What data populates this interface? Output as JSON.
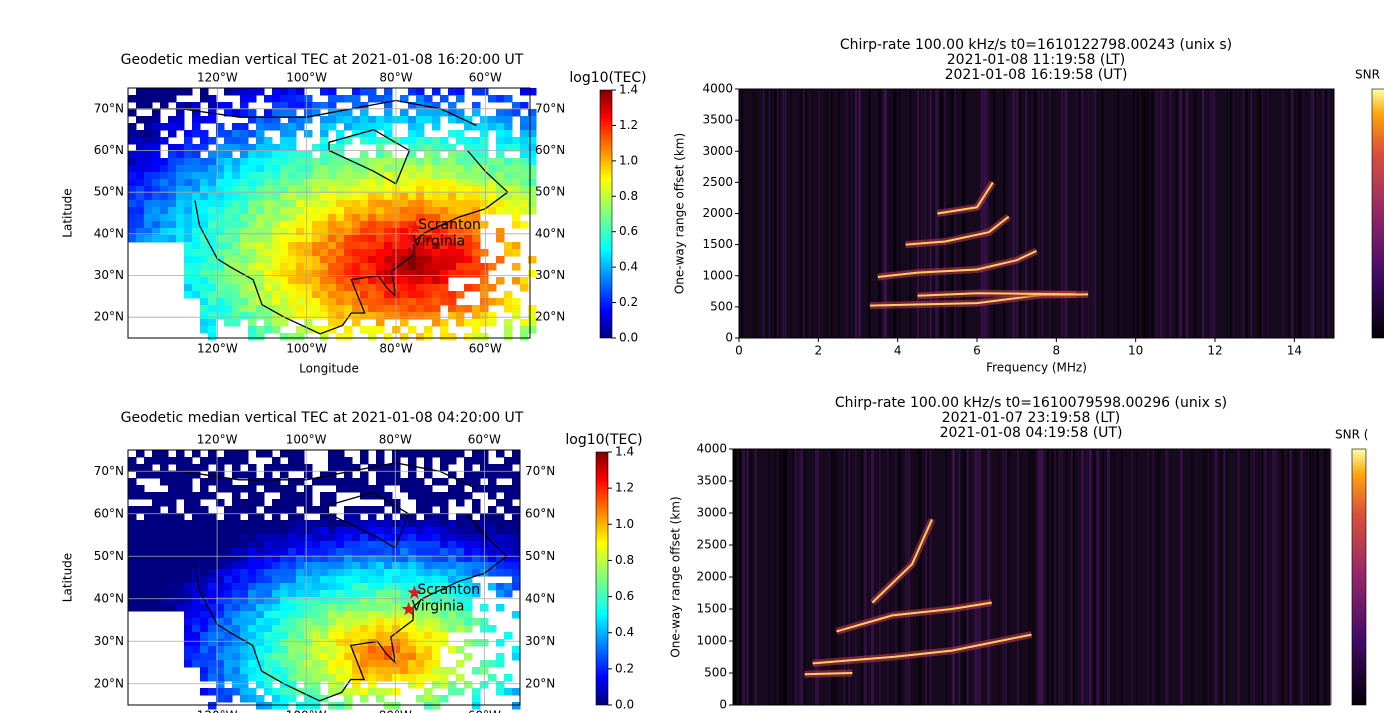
{
  "chart_data": [
    {
      "type": "map",
      "title": "Geodetic median vertical TEC at  2021-01-08 16:20:00 UT",
      "xlabel": "Longitude",
      "ylabel": "Latitude",
      "xlim": [
        -140,
        -50
      ],
      "ylim": [
        15,
        75
      ],
      "xticks": [
        {
          "value": -120,
          "label": "120°W"
        },
        {
          "value": -100,
          "label": "100°W"
        },
        {
          "value": -80,
          "label": "80°W"
        },
        {
          "value": -60,
          "label": "60°W"
        }
      ],
      "yticks": [
        {
          "value": 20,
          "label": "20°N"
        },
        {
          "value": 30,
          "label": "30°N"
        },
        {
          "value": 40,
          "label": "40°N"
        },
        {
          "value": 50,
          "label": "50°N"
        },
        {
          "value": 60,
          "label": "60°N"
        },
        {
          "value": 70,
          "label": "70°N"
        }
      ],
      "markers": [
        {
          "label": "Scranton",
          "x": -75.7,
          "y": 41.4
        },
        {
          "label": "Virginia",
          "x": -77,
          "y": 37.5
        }
      ],
      "colorbar": {
        "label": "log10(TEC)",
        "lim": [
          0,
          1.4
        ],
        "ticks": [
          {
            "value": 0,
            "label": "0.0"
          },
          0.2,
          0.4,
          0.6,
          0.8,
          {
            "value": 1,
            "label": "1.0"
          },
          1.2,
          1.4
        ]
      }
    },
    {
      "type": "spectrogram",
      "title_lines": [
        "Chirp-rate 100.00 kHz/s t0=1610122798.00243 (unix s)",
        "2021-01-08 11:19:58 (LT)",
        "2021-01-08 16:19:58 (UT)"
      ],
      "xlabel": "Frequency (MHz)",
      "ylabel": "One-way range offset (km)",
      "xlim": [
        0,
        15
      ],
      "ylim": [
        0,
        4000
      ],
      "xticks": [
        0,
        2,
        4,
        6,
        8,
        10,
        12,
        14
      ],
      "yticks": [
        0,
        500,
        1000,
        1500,
        2000,
        2500,
        3000,
        3500,
        4000
      ],
      "colorbar": {
        "label": "SNR"
      }
    },
    {
      "type": "map",
      "title": "Geodetic median vertical TEC at  2021-01-08 04:20:00 UT",
      "ylabel": "Latitude",
      "xlim": [
        -140,
        -52
      ],
      "ylim": [
        15,
        75
      ],
      "xticks": [
        {
          "value": -120,
          "label": "120°W"
        },
        {
          "value": -100,
          "label": "100°W"
        },
        {
          "value": -80,
          "label": "80°W"
        },
        {
          "value": -60,
          "label": "60°W"
        }
      ],
      "yticks": [
        {
          "value": 20,
          "label": "20°N"
        },
        {
          "value": 30,
          "label": "30°N"
        },
        {
          "value": 40,
          "label": "40°N"
        },
        {
          "value": 50,
          "label": "50°N"
        },
        {
          "value": 60,
          "label": "60°N"
        },
        {
          "value": 70,
          "label": "70°N"
        }
      ],
      "markers": [
        {
          "label": "Scranton",
          "x": -75.7,
          "y": 41.4
        },
        {
          "label": "Virginia",
          "x": -77,
          "y": 37.5
        }
      ],
      "colorbar": {
        "label": "log10(TEC)",
        "lim": [
          0,
          1.4
        ],
        "ticks": [
          {
            "value": 0,
            "label": "0.0"
          },
          0.2,
          0.4,
          0.6,
          0.8,
          {
            "value": 1,
            "label": "1.0"
          },
          1.2,
          1.4
        ]
      }
    },
    {
      "type": "spectrogram",
      "title_lines": [
        "Chirp-rate 100.00 kHz/s t0=1610079598.00296 (unix s)",
        "2021-01-07 23:19:58 (LT)",
        "2021-01-08 04:19:58 (UT)"
      ],
      "ylabel": "One-way range offset (km)",
      "ylim": [
        0,
        4000
      ],
      "yticks": [
        0,
        500,
        1000,
        1500,
        2000,
        2500,
        3000,
        3500,
        4000
      ],
      "colorbar": {
        "label": "SNR ("
      }
    }
  ]
}
